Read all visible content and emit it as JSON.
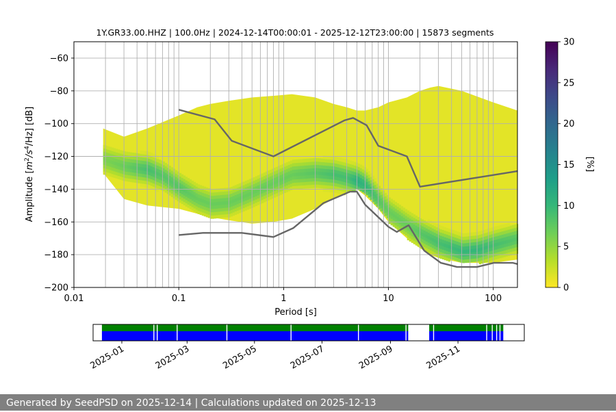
{
  "footer": {
    "text": "Generated by SeedPSD on 2025-12-14 | Calculations updated on 2025-12-13"
  },
  "chart_data": [
    {
      "type": "heatmap",
      "description_kind": "probabilistic power spectral density",
      "title": "1Y.GR33.00.HHZ | 100.0Hz | 2024-12-14T00:00:01 - 2025-12-12T23:00:00 | 15873 segments",
      "xlabel": "Period [s]",
      "ylabel_parts": [
        "Amplitude [",
        "m",
        "2",
        "/s",
        "4",
        "/Hz] [dB]"
      ],
      "x_scale": "log",
      "xlim": [
        0.01,
        170
      ],
      "ylim": [
        -200,
        -50
      ],
      "x_ticks": [
        0.01,
        0.1,
        1,
        10,
        100
      ],
      "x_tick_labels": [
        "0.01",
        "0.1",
        "1",
        "10",
        "100"
      ],
      "y_ticks": [
        -200,
        -180,
        -160,
        -140,
        -120,
        -100,
        -80,
        -60
      ],
      "y_tick_labels": [
        "−200",
        "−180",
        "−160",
        "−140",
        "−120",
        "−100",
        "−80",
        "−60"
      ],
      "grid": true,
      "colorbar": {
        "label": "[%]",
        "range": [
          0,
          30
        ],
        "ticks": [
          0,
          5,
          10,
          15,
          20,
          25,
          30
        ],
        "tick_labels": [
          "0",
          "5",
          "10",
          "15",
          "20",
          "25",
          "30"
        ],
        "colormap": "viridis_r",
        "colors": [
          "#fde725",
          "#b5de2b",
          "#6ece58",
          "#35b779",
          "#1f9e89",
          "#26828e",
          "#31688e",
          "#3e4989",
          "#482878",
          "#440154"
        ]
      },
      "density_ridge": {
        "period": [
          0.019,
          0.03,
          0.05,
          0.07,
          0.1,
          0.15,
          0.2,
          0.3,
          0.5,
          0.8,
          1.2,
          2,
          3,
          4,
          5,
          6,
          8,
          10,
          15,
          20,
          30,
          50,
          70,
          100,
          170
        ],
        "db": [
          -122,
          -126,
          -128,
          -132,
          -139,
          -146,
          -149,
          -148,
          -142,
          -136,
          -131,
          -130,
          -131,
          -133,
          -135,
          -138,
          -147,
          -154,
          -162,
          -167,
          -173,
          -178,
          -177,
          -174,
          -170
        ],
        "peak_percent": [
          6,
          7,
          9,
          8,
          8,
          7,
          7,
          7,
          7,
          7,
          7,
          8,
          9,
          9,
          11,
          10,
          8,
          7,
          7,
          8,
          9,
          10,
          10,
          9,
          8
        ]
      },
      "envelope": {
        "period": [
          0.019,
          0.03,
          0.05,
          0.1,
          0.15,
          0.2,
          0.3,
          0.5,
          0.8,
          1.2,
          2,
          3,
          4,
          5,
          6,
          8,
          10,
          15,
          20,
          25,
          30,
          50,
          100,
          170
        ],
        "upper_db": [
          -103,
          -108,
          -103,
          -95,
          -90,
          -88,
          -86,
          -84,
          -83,
          -82,
          -84,
          -88,
          -90,
          -92,
          -92,
          -90,
          -87,
          -84,
          -80,
          -78,
          -77,
          -80,
          -87,
          -92
        ],
        "lower_db": [
          -130,
          -146,
          -150,
          -152,
          -155,
          -157,
          -159,
          -161,
          -160,
          -158,
          -152,
          -146,
          -142,
          -140,
          -144,
          -152,
          -160,
          -170,
          -176,
          -180,
          -182,
          -185,
          -185,
          -183
        ]
      },
      "series": [
        {
          "period": [
            0.1,
            0.22,
            0.32,
            0.8,
            3.8,
            4.6,
            6.2,
            8,
            15,
            20,
            170
          ],
          "db": [
            -91.5,
            -97.4,
            -110.5,
            -120.0,
            -98.0,
            -96.5,
            -101.0,
            -113.5,
            -120.0,
            -138.5,
            -129.0
          ],
          "color": "#666666"
        },
        {
          "period": [
            0.1,
            0.17,
            0.4,
            0.8,
            1.24,
            2.4,
            4.3,
            5.0,
            6.0,
            10,
            12,
            15.6,
            21.9,
            31.6,
            45,
            70,
            101,
            154,
            170
          ],
          "db": [
            -168.0,
            -166.7,
            -166.7,
            -169.2,
            -163.7,
            -148.5,
            -141.5,
            -141.5,
            -149.5,
            -163.0,
            -166.1,
            -162.0,
            -177.5,
            -185.0,
            -187.5,
            -187.5,
            -185.0,
            -185.0,
            -185.7
          ],
          "color": "#666666"
        }
      ],
      "vertical_grid_periods": [
        0.02,
        0.03,
        0.04,
        0.05,
        0.06,
        0.07,
        0.08,
        0.09,
        0.1,
        0.2,
        0.3,
        0.4,
        0.5,
        0.6,
        0.7,
        0.8,
        0.9,
        1,
        2,
        3,
        4,
        5,
        6,
        7,
        8,
        9,
        10,
        20,
        30,
        40,
        50,
        60,
        70,
        80,
        90,
        100
      ]
    },
    {
      "type": "bar",
      "description_kind": "data availability timeline",
      "x_type": "date",
      "xlim": [
        "2024-12-06",
        "2025-12-31"
      ],
      "x_ticks": [
        "2025-01-01",
        "2025-03-01",
        "2025-05-01",
        "2025-07-01",
        "2025-09-01",
        "2025-11-01"
      ],
      "x_tick_labels": [
        "2025-01",
        "2025-03",
        "2025-05",
        "2025-07",
        "2025-09",
        "2025-11"
      ],
      "rows": [
        {
          "color": "#008000",
          "segments": [
            [
              "2024-12-14",
              "2025-09-17"
            ],
            [
              "2025-10-06",
              "2025-12-12"
            ]
          ]
        },
        {
          "color": "#0000ff",
          "segments": [
            [
              "2024-12-14",
              "2025-09-17"
            ],
            [
              "2025-10-06",
              "2025-12-12"
            ]
          ]
        }
      ],
      "gaps": [
        "2025-01-30",
        "2025-02-02",
        "2025-02-20",
        "2025-04-06",
        "2025-06-03",
        "2025-08-03",
        "2025-09-15",
        "2025-10-10",
        "2025-11-27",
        "2025-12-02",
        "2025-12-06",
        "2025-12-09"
      ]
    }
  ]
}
